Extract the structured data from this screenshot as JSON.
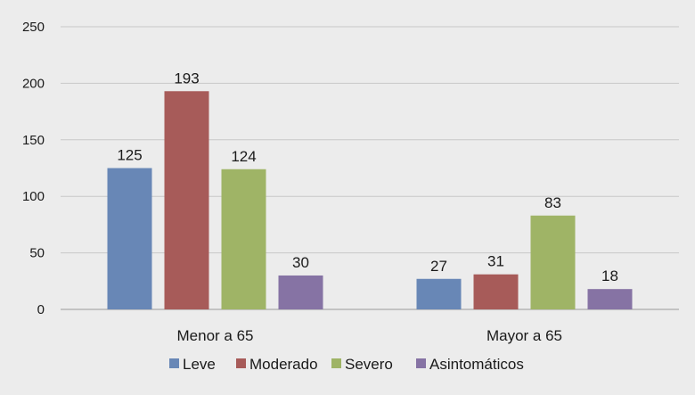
{
  "chart_data": {
    "type": "bar",
    "title": "",
    "xlabel": "",
    "ylabel": "",
    "categories": [
      "Menor a 65",
      "Mayor a 65"
    ],
    "ylim": [
      0,
      250
    ],
    "yticks": [
      0,
      50,
      100,
      150,
      200,
      250
    ],
    "ytick_labels": [
      "0",
      "50",
      "100",
      "150",
      "200",
      "250"
    ],
    "grid": true,
    "legend_position": "bottom",
    "series": [
      {
        "name": "Leve",
        "values": [
          125,
          27
        ],
        "labels": [
          "125",
          "27"
        ],
        "color": "#6887b6"
      },
      {
        "name": "Moderado",
        "values": [
          193,
          31
        ],
        "labels": [
          "193",
          "31"
        ],
        "color": "#a75b59"
      },
      {
        "name": "Severo",
        "values": [
          124,
          83
        ],
        "labels": [
          "124",
          "83"
        ],
        "color": "#9fb466"
      },
      {
        "name": "Asintomáticos",
        "values": [
          30,
          18
        ],
        "labels": [
          "30",
          "18"
        ],
        "color": "#8673a4"
      }
    ]
  }
}
